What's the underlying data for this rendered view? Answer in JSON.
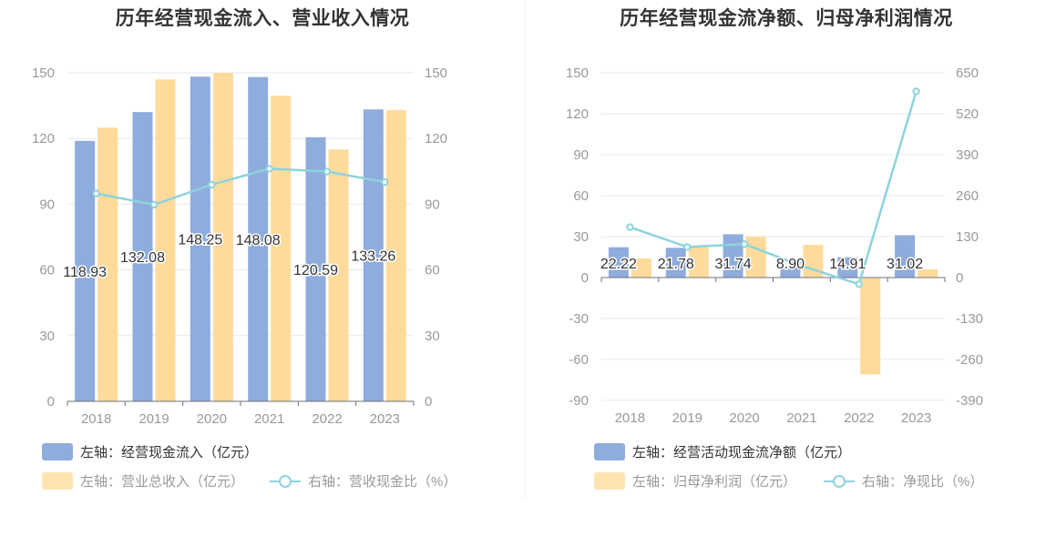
{
  "chart_data": [
    {
      "type": "bar",
      "title": "历年经营现金流入、营业收入情况",
      "categories": [
        "2018",
        "2019",
        "2020",
        "2021",
        "2022",
        "2023"
      ],
      "left_axis": {
        "ticks": [
          "0",
          "30",
          "60",
          "90",
          "120",
          "150"
        ],
        "range": [
          0,
          150
        ]
      },
      "right_axis": {
        "ticks": [
          "0",
          "30",
          "60",
          "90",
          "120",
          "150"
        ],
        "range": [
          0,
          150
        ]
      },
      "series": [
        {
          "name": "左轴：经营现金流入（亿元）",
          "kind": "bar",
          "axis": "left",
          "color": "#8eacdc",
          "values": [
            118.93,
            132.08,
            148.25,
            148.08,
            120.59,
            133.26
          ],
          "labels": [
            "118.93",
            "132.08",
            "148.25",
            "148.08",
            "120.59",
            "133.26"
          ]
        },
        {
          "name": "左轴：营业总收入（亿元）",
          "kind": "bar",
          "axis": "left",
          "color": "#ffdb9b",
          "values": [
            125,
            147,
            150,
            139.5,
            115,
            133
          ]
        },
        {
          "name": "右轴：营收现金比（%）",
          "kind": "line",
          "axis": "right",
          "color": "#8dd3dd",
          "values": [
            94.9,
            89.8,
            98.9,
            106.2,
            104.9,
            100.1
          ]
        }
      ],
      "grid": true,
      "legend_position": "bottom-left"
    },
    {
      "type": "bar",
      "title": "历年经营现金流净额、归母净利润情况",
      "categories": [
        "2018",
        "2019",
        "2020",
        "2021",
        "2022",
        "2023"
      ],
      "left_axis": {
        "ticks": [
          "-90",
          "-60",
          "-30",
          "0",
          "30",
          "60",
          "90",
          "120",
          "150"
        ],
        "range": [
          -90,
          150
        ]
      },
      "right_axis": {
        "ticks": [
          "-390",
          "-260",
          "-130",
          "0",
          "130",
          "260",
          "390",
          "520",
          "650"
        ],
        "range": [
          -390,
          650
        ]
      },
      "series": [
        {
          "name": "左轴：经营活动现金流净额（亿元）",
          "kind": "bar",
          "axis": "left",
          "color": "#8eacdc",
          "values": [
            22.22,
            21.78,
            31.74,
            8.9,
            14.91,
            31.02
          ],
          "labels": [
            "22.22",
            "21.78",
            "31.74",
            "8.90",
            "14.91",
            "31.02"
          ]
        },
        {
          "name": "左轴：归母净利润（亿元）",
          "kind": "bar",
          "axis": "left",
          "color": "#ffdb9b",
          "values": [
            14.0,
            22.5,
            30.0,
            24.0,
            -71.0,
            6.0
          ]
        },
        {
          "name": "右轴：净现比（%）",
          "kind": "line",
          "axis": "right",
          "color": "#8dd3dd",
          "values": [
            160,
            97,
            106,
            37,
            -21,
            591
          ]
        }
      ],
      "grid": true,
      "legend_position": "bottom-left"
    }
  ]
}
